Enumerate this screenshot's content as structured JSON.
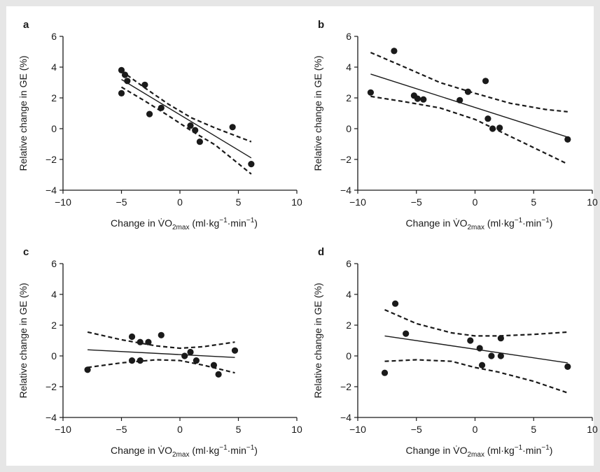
{
  "chart_data": [
    {
      "type": "scatter",
      "panel": "a",
      "xlabel": "Change in V̇O2max (ml·kg−1·min−1)",
      "ylabel": "Relative change in GE (%)",
      "xlim": [
        -10,
        10
      ],
      "ylim": [
        -4,
        6
      ],
      "xticks": [
        -10,
        -5,
        0,
        5,
        10
      ],
      "yticks": [
        -4,
        -2,
        0,
        2,
        4,
        6
      ],
      "points": [
        {
          "x": -5.0,
          "y": 3.8
        },
        {
          "x": -4.7,
          "y": 3.5
        },
        {
          "x": -4.5,
          "y": 3.1
        },
        {
          "x": -5.0,
          "y": 2.3
        },
        {
          "x": -3.0,
          "y": 2.85
        },
        {
          "x": -2.6,
          "y": 0.95
        },
        {
          "x": -1.6,
          "y": 1.35
        },
        {
          "x": 0.9,
          "y": 0.2
        },
        {
          "x": 1.3,
          "y": -0.1
        },
        {
          "x": 1.7,
          "y": -0.85
        },
        {
          "x": 4.5,
          "y": 0.1
        },
        {
          "x": 6.1,
          "y": -2.3
        }
      ],
      "fit": {
        "x": [
          -5.0,
          6.1
        ],
        "y": [
          3.2,
          -1.9
        ]
      },
      "ci_upper": {
        "x": [
          -5.0,
          -3,
          -1,
          1,
          3,
          6.1
        ],
        "y": [
          3.75,
          2.65,
          1.6,
          0.7,
          0.05,
          -0.85
        ]
      },
      "ci_lower": {
        "x": [
          -5.0,
          -3,
          -1,
          1,
          3,
          6.1
        ],
        "y": [
          2.7,
          1.8,
          0.85,
          -0.15,
          -1.05,
          -2.95
        ]
      },
      "grid": false
    },
    {
      "type": "scatter",
      "panel": "b",
      "xlabel": "Change in V̇O2max (ml·kg−1·min−1)",
      "ylabel": "Relative change in GE (%)",
      "xlim": [
        -10,
        10
      ],
      "ylim": [
        -4,
        6
      ],
      "xticks": [
        -10,
        -5,
        0,
        5,
        10
      ],
      "yticks": [
        -4,
        -2,
        0,
        2,
        4,
        6
      ],
      "points": [
        {
          "x": -8.9,
          "y": 2.35
        },
        {
          "x": -6.9,
          "y": 5.05
        },
        {
          "x": -5.2,
          "y": 2.15
        },
        {
          "x": -4.9,
          "y": 1.95
        },
        {
          "x": -4.4,
          "y": 1.9
        },
        {
          "x": -1.3,
          "y": 1.85
        },
        {
          "x": -0.6,
          "y": 2.4
        },
        {
          "x": 0.9,
          "y": 3.1
        },
        {
          "x": 1.1,
          "y": 0.65
        },
        {
          "x": 1.5,
          "y": 0.0
        },
        {
          "x": 2.1,
          "y": 0.05
        },
        {
          "x": 7.9,
          "y": -0.7
        }
      ],
      "fit": {
        "x": [
          -8.9,
          7.9
        ],
        "y": [
          3.55,
          -0.55
        ]
      },
      "ci_upper": {
        "x": [
          -8.9,
          -6,
          -3,
          0,
          3,
          6,
          7.9
        ],
        "y": [
          4.95,
          4.0,
          3.0,
          2.3,
          1.65,
          1.25,
          1.1
        ]
      },
      "ci_lower": {
        "x": [
          -8.9,
          -6,
          -3,
          0,
          3,
          6,
          7.9
        ],
        "y": [
          2.1,
          1.75,
          1.35,
          0.6,
          -0.5,
          -1.6,
          -2.3
        ]
      },
      "grid": false
    },
    {
      "type": "scatter",
      "panel": "c",
      "xlabel": "Change in V̇O2max (ml·kg−1·min−1)",
      "ylabel": "Relative change in GE (%)",
      "xlim": [
        -10,
        10
      ],
      "ylim": [
        -4,
        6
      ],
      "xticks": [
        -10,
        -5,
        0,
        5,
        10
      ],
      "yticks": [
        -4,
        -2,
        0,
        2,
        4,
        6
      ],
      "points": [
        {
          "x": -7.9,
          "y": -0.9
        },
        {
          "x": -4.1,
          "y": 1.25
        },
        {
          "x": -4.1,
          "y": -0.3
        },
        {
          "x": -3.4,
          "y": 0.9
        },
        {
          "x": -3.4,
          "y": -0.3
        },
        {
          "x": -2.7,
          "y": 0.9
        },
        {
          "x": -1.6,
          "y": 1.35
        },
        {
          "x": 0.4,
          "y": 0.0
        },
        {
          "x": 0.9,
          "y": 0.25
        },
        {
          "x": 1.4,
          "y": -0.3
        },
        {
          "x": 2.9,
          "y": -0.6
        },
        {
          "x": 3.3,
          "y": -1.2
        },
        {
          "x": 4.7,
          "y": 0.35
        }
      ],
      "fit": {
        "x": [
          -7.9,
          4.7
        ],
        "y": [
          0.4,
          -0.1
        ]
      },
      "ci_upper": {
        "x": [
          -7.9,
          -5,
          -2,
          0,
          2,
          4.7
        ],
        "y": [
          1.55,
          1.05,
          0.65,
          0.5,
          0.6,
          0.9
        ]
      },
      "ci_lower": {
        "x": [
          -7.9,
          -5,
          -2,
          0,
          2,
          4.7
        ],
        "y": [
          -0.75,
          -0.45,
          -0.25,
          -0.3,
          -0.6,
          -1.1
        ]
      },
      "grid": false
    },
    {
      "type": "scatter",
      "panel": "d",
      "xlabel": "Change in V̇O2max (ml·kg−1·min−1)",
      "ylabel": "Relative change in GE (%)",
      "xlim": [
        -10,
        10
      ],
      "ylim": [
        -4,
        6
      ],
      "xticks": [
        -10,
        -5,
        0,
        5,
        10
      ],
      "yticks": [
        -4,
        -2,
        0,
        2,
        4,
        6
      ],
      "points": [
        {
          "x": -7.7,
          "y": -1.1
        },
        {
          "x": -6.8,
          "y": 3.4
        },
        {
          "x": -5.9,
          "y": 1.45
        },
        {
          "x": -0.4,
          "y": 1.0
        },
        {
          "x": 0.4,
          "y": 0.5
        },
        {
          "x": 0.6,
          "y": -0.6
        },
        {
          "x": 1.4,
          "y": 0.0
        },
        {
          "x": 2.2,
          "y": 1.15
        },
        {
          "x": 2.2,
          "y": 0.0
        },
        {
          "x": 7.9,
          "y": -0.7
        }
      ],
      "fit": {
        "x": [
          -7.7,
          7.9
        ],
        "y": [
          1.3,
          -0.45
        ]
      },
      "ci_upper": {
        "x": [
          -7.7,
          -5,
          -2,
          0,
          2,
          5,
          7.9
        ],
        "y": [
          3.0,
          2.1,
          1.5,
          1.3,
          1.3,
          1.4,
          1.55
        ]
      },
      "ci_lower": {
        "x": [
          -7.7,
          -5,
          -2,
          0,
          2,
          5,
          7.9
        ],
        "y": [
          -0.35,
          -0.25,
          -0.35,
          -0.75,
          -1.05,
          -1.65,
          -2.4
        ]
      },
      "grid": false
    }
  ]
}
